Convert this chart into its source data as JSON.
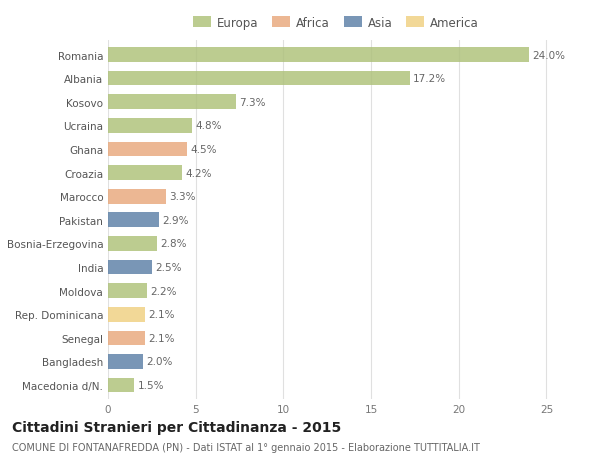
{
  "categories": [
    "Romania",
    "Albania",
    "Kosovo",
    "Ucraina",
    "Ghana",
    "Croazia",
    "Marocco",
    "Pakistan",
    "Bosnia-Erzegovina",
    "India",
    "Moldova",
    "Rep. Dominicana",
    "Senegal",
    "Bangladesh",
    "Macedonia d/N."
  ],
  "values": [
    24.0,
    17.2,
    7.3,
    4.8,
    4.5,
    4.2,
    3.3,
    2.9,
    2.8,
    2.5,
    2.2,
    2.1,
    2.1,
    2.0,
    1.5
  ],
  "continents": [
    "Europa",
    "Europa",
    "Europa",
    "Europa",
    "Africa",
    "Europa",
    "Africa",
    "Asia",
    "Europa",
    "Asia",
    "Europa",
    "America",
    "Africa",
    "Asia",
    "Europa"
  ],
  "colors": {
    "Europa": "#adc178",
    "Africa": "#e8a87c",
    "Asia": "#5b7fa6",
    "America": "#f0d080"
  },
  "bar_alpha": 0.82,
  "background_color": "#ffffff",
  "grid_color": "#e0e0e0",
  "title": "Cittadini Stranieri per Cittadinanza - 2015",
  "subtitle": "COMUNE DI FONTANAFREDDA (PN) - Dati ISTAT al 1° gennaio 2015 - Elaborazione TUTTITALIA.IT",
  "xlim": [
    0,
    26
  ],
  "xticks": [
    0,
    5,
    10,
    15,
    20,
    25
  ],
  "label_fontsize": 7.5,
  "title_fontsize": 10,
  "subtitle_fontsize": 7,
  "tick_fontsize": 7.5,
  "legend_fontsize": 8.5,
  "bar_height": 0.62
}
